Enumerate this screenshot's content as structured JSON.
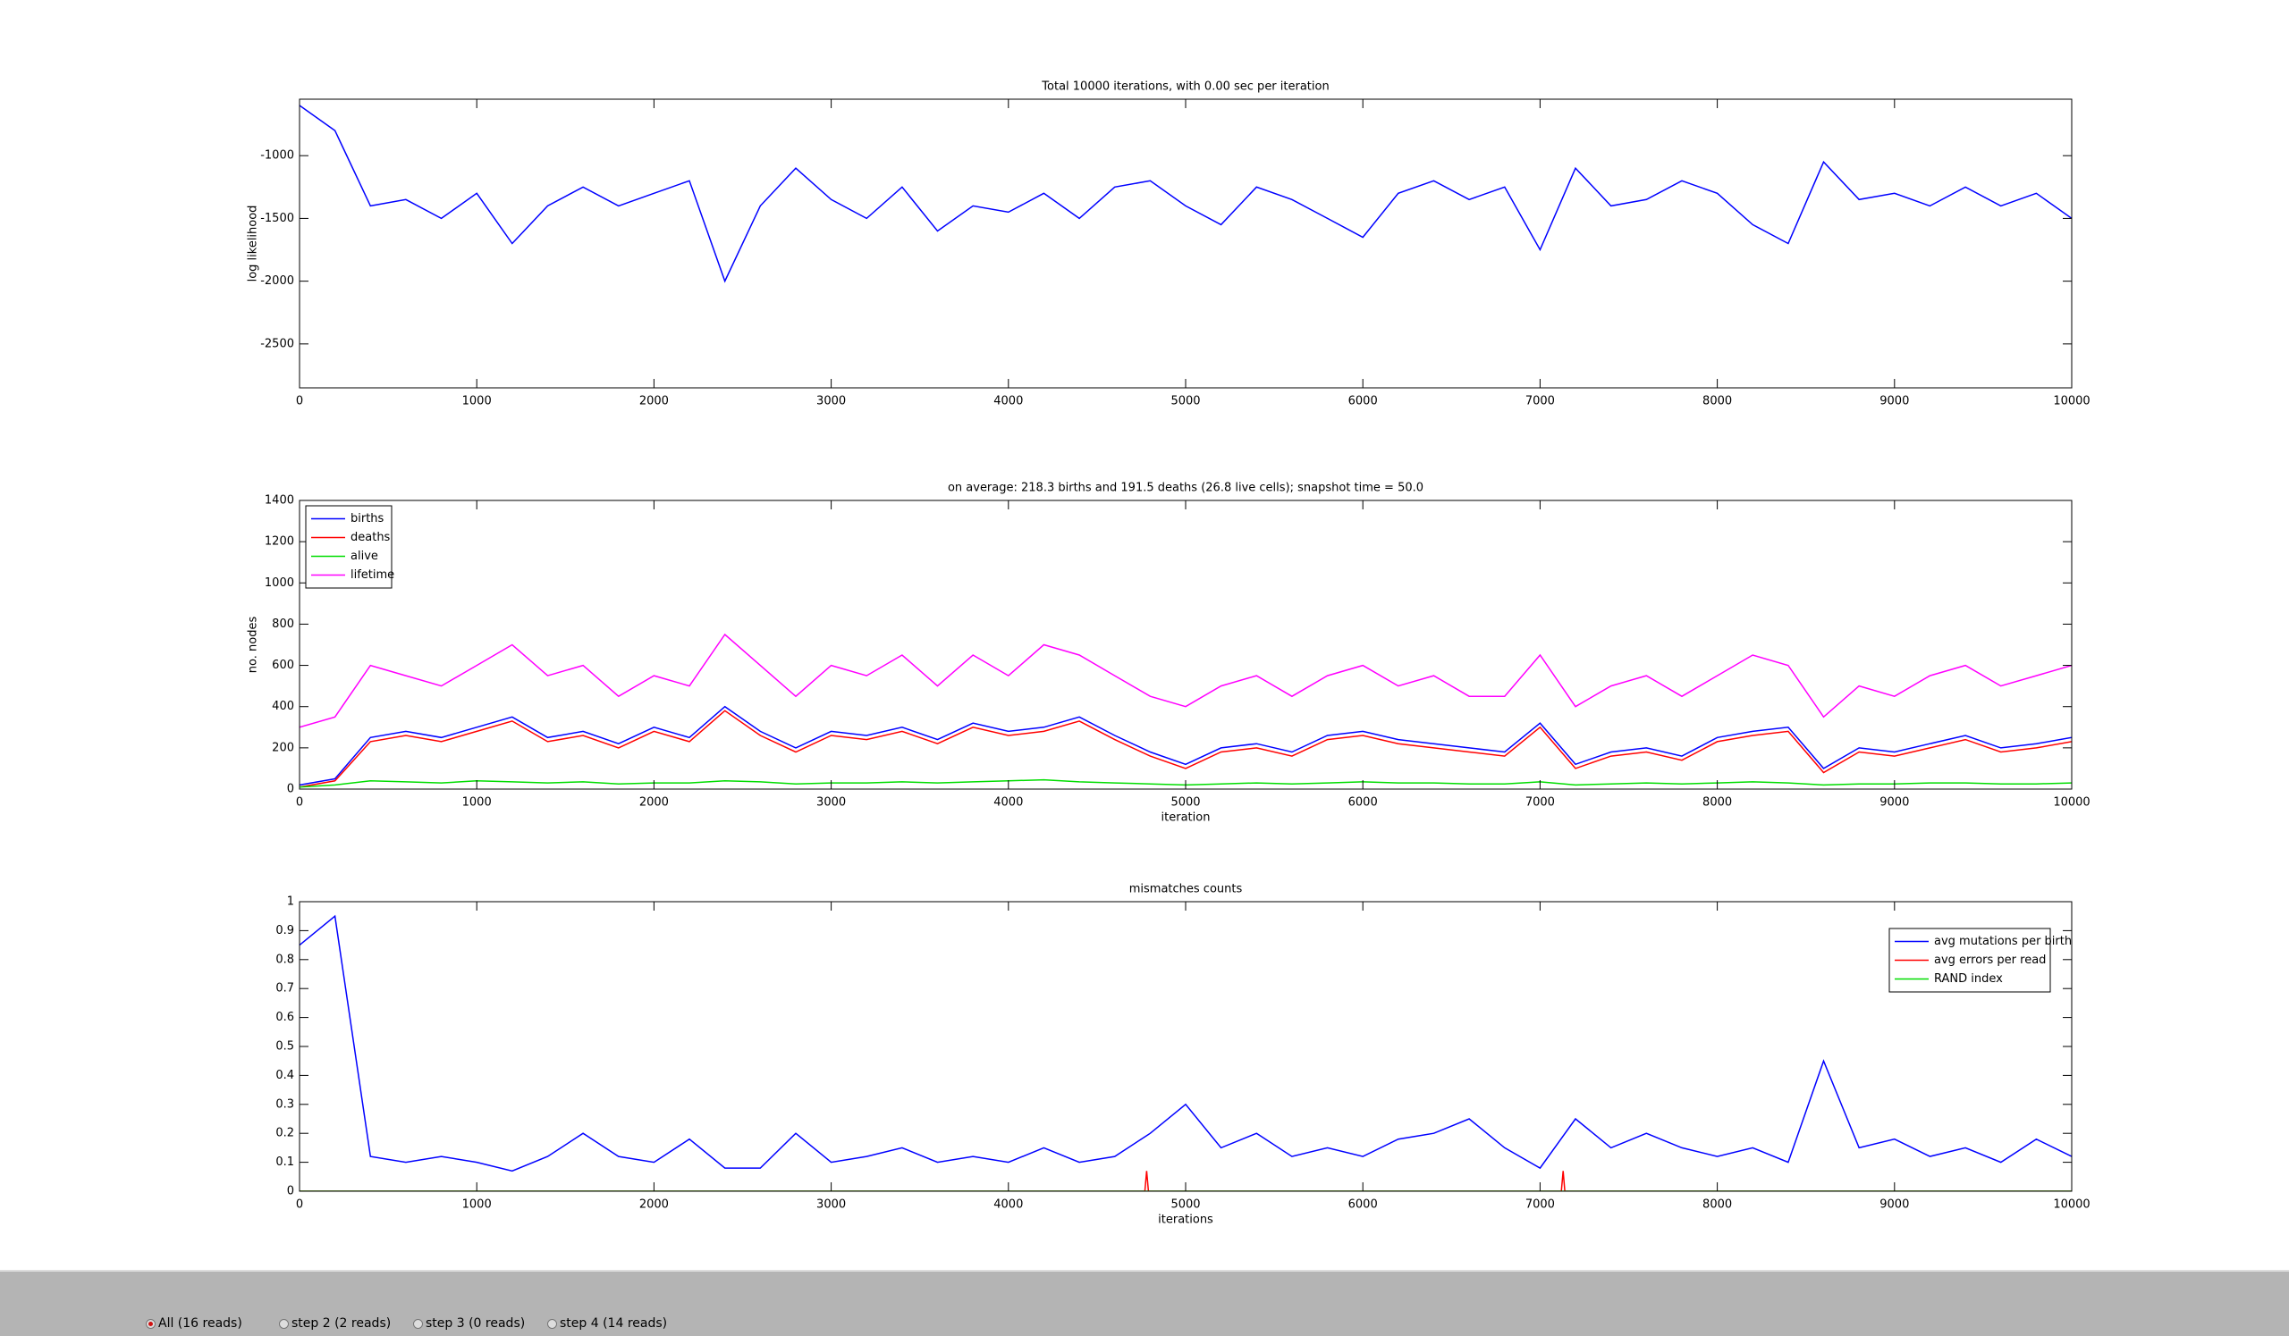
{
  "chart_data": [
    {
      "type": "line",
      "title": "Total 10000 iterations, with 0.00 sec per iteration",
      "ylabel": "log likelihood",
      "x": [
        0,
        200,
        400,
        600,
        800,
        1000,
        1200,
        1400,
        1600,
        1800,
        2000,
        2200,
        2400,
        2600,
        2800,
        3000,
        3200,
        3400,
        3600,
        3800,
        4000,
        4200,
        4400,
        4600,
        4800,
        5000,
        5200,
        5400,
        5600,
        5800,
        6000,
        6200,
        6400,
        6600,
        6800,
        7000,
        7200,
        7400,
        7600,
        7800,
        8000,
        8200,
        8400,
        8600,
        8800,
        9000,
        9200,
        9400,
        9600,
        9800,
        10000
      ],
      "xlim": [
        0,
        10000
      ],
      "xticks": [
        0,
        1000,
        2000,
        3000,
        4000,
        5000,
        6000,
        7000,
        8000,
        9000,
        10000
      ],
      "ylim": [
        -2850,
        -550
      ],
      "yticks": [
        -2500,
        -2000,
        -1500,
        -1000
      ],
      "series": [
        {
          "name": "log likelihood",
          "color": "#0000ff",
          "values": [
            -600,
            -800,
            -1400,
            -1350,
            -1500,
            -1300,
            -1700,
            -1400,
            -1250,
            -1400,
            -1300,
            -1200,
            -2000,
            -1400,
            -1100,
            -1350,
            -1500,
            -1250,
            -1600,
            -1400,
            -1450,
            -1300,
            -1500,
            -1250,
            -1200,
            -1400,
            -1550,
            -1250,
            -1350,
            -1500,
            -1650,
            -1300,
            -1200,
            -1350,
            -1250,
            -1750,
            -1100,
            -1400,
            -1350,
            -1200,
            -1300,
            -1550,
            -1700,
            -1050,
            -1350,
            -1300,
            -1400,
            -1250,
            -1400,
            -1300,
            -1500
          ]
        }
      ]
    },
    {
      "type": "line",
      "title": "on average: 218.3 births and 191.5 deaths (26.8 live cells); snapshot time = 50.0",
      "xlabel": "iteration",
      "ylabel": "no. nodes",
      "legend": "upper left",
      "x": [
        0,
        200,
        400,
        600,
        800,
        1000,
        1200,
        1400,
        1600,
        1800,
        2000,
        2200,
        2400,
        2600,
        2800,
        3000,
        3200,
        3400,
        3600,
        3800,
        4000,
        4200,
        4400,
        4600,
        4800,
        5000,
        5200,
        5400,
        5600,
        5800,
        6000,
        6200,
        6400,
        6600,
        6800,
        7000,
        7200,
        7400,
        7600,
        7800,
        8000,
        8200,
        8400,
        8600,
        8800,
        9000,
        9200,
        9400,
        9600,
        9800,
        10000
      ],
      "xlim": [
        0,
        10000
      ],
      "xticks": [
        0,
        1000,
        2000,
        3000,
        4000,
        5000,
        6000,
        7000,
        8000,
        9000,
        10000
      ],
      "ylim": [
        0,
        1400
      ],
      "yticks": [
        0,
        200,
        400,
        600,
        800,
        1000,
        1200,
        1400
      ],
      "series": [
        {
          "name": "lifetime",
          "color": "#ff00ff",
          "values": [
            300,
            350,
            600,
            550,
            500,
            600,
            700,
            550,
            600,
            450,
            550,
            500,
            750,
            600,
            450,
            600,
            550,
            650,
            500,
            650,
            550,
            700,
            650,
            550,
            450,
            400,
            500,
            550,
            450,
            550,
            600,
            500,
            550,
            450,
            450,
            650,
            400,
            500,
            550,
            450,
            550,
            650,
            600,
            350,
            500,
            450,
            550,
            600,
            500,
            550,
            600
          ]
        },
        {
          "name": "births",
          "color": "#0000ff",
          "values": [
            20,
            50,
            250,
            280,
            250,
            300,
            350,
            250,
            280,
            220,
            300,
            250,
            400,
            280,
            200,
            280,
            260,
            300,
            240,
            320,
            280,
            300,
            350,
            260,
            180,
            120,
            200,
            220,
            180,
            260,
            280,
            240,
            220,
            200,
            180,
            320,
            120,
            180,
            200,
            160,
            250,
            280,
            300,
            100,
            200,
            180,
            220,
            260,
            200,
            220,
            250
          ]
        },
        {
          "name": "deaths",
          "color": "#ff0000",
          "values": [
            10,
            40,
            230,
            260,
            230,
            280,
            330,
            230,
            260,
            200,
            280,
            230,
            380,
            260,
            180,
            260,
            240,
            280,
            220,
            300,
            260,
            280,
            330,
            240,
            160,
            100,
            180,
            200,
            160,
            240,
            260,
            220,
            200,
            180,
            160,
            300,
            100,
            160,
            180,
            140,
            230,
            260,
            280,
            80,
            180,
            160,
            200,
            240,
            180,
            200,
            230
          ]
        },
        {
          "name": "alive",
          "color": "#00dd00",
          "values": [
            10,
            20,
            40,
            35,
            30,
            40,
            35,
            30,
            35,
            25,
            30,
            30,
            40,
            35,
            25,
            30,
            30,
            35,
            30,
            35,
            40,
            45,
            35,
            30,
            25,
            20,
            25,
            30,
            25,
            30,
            35,
            30,
            30,
            25,
            25,
            35,
            20,
            25,
            30,
            25,
            30,
            35,
            30,
            20,
            25,
            25,
            30,
            30,
            25,
            25,
            30
          ]
        }
      ]
    },
    {
      "type": "line",
      "title": "mismatches counts",
      "xlabel": "iterations",
      "legend": "upper right",
      "x": [
        0,
        200,
        400,
        600,
        800,
        1000,
        1200,
        1400,
        1600,
        1800,
        2000,
        2200,
        2400,
        2600,
        2800,
        3000,
        3200,
        3400,
        3600,
        3800,
        4000,
        4200,
        4400,
        4600,
        4800,
        5000,
        5200,
        5400,
        5600,
        5800,
        6000,
        6200,
        6400,
        6600,
        6800,
        7000,
        7200,
        7400,
        7600,
        7800,
        8000,
        8200,
        8400,
        8600,
        8800,
        9000,
        9200,
        9400,
        9600,
        9800,
        10000
      ],
      "xlim": [
        0,
        10000
      ],
      "xticks": [
        0,
        1000,
        2000,
        3000,
        4000,
        5000,
        6000,
        7000,
        8000,
        9000,
        10000
      ],
      "ylim": [
        0,
        1
      ],
      "yticks": [
        0,
        0.1,
        0.2,
        0.3,
        0.4,
        0.5,
        0.6,
        0.7,
        0.8,
        0.9,
        1
      ],
      "series": [
        {
          "name": "avg mutations per birth",
          "color": "#0000ff",
          "values": [
            0.85,
            0.95,
            0.12,
            0.1,
            0.12,
            0.1,
            0.07,
            0.12,
            0.2,
            0.12,
            0.1,
            0.18,
            0.08,
            0.08,
            0.2,
            0.1,
            0.12,
            0.15,
            0.1,
            0.12,
            0.1,
            0.15,
            0.1,
            0.12,
            0.2,
            0.3,
            0.15,
            0.2,
            0.12,
            0.15,
            0.12,
            0.18,
            0.2,
            0.25,
            0.15,
            0.08,
            0.25,
            0.15,
            0.2,
            0.15,
            0.12,
            0.15,
            0.1,
            0.45,
            0.15,
            0.18,
            0.12,
            0.15,
            0.1,
            0.18,
            0.12
          ]
        },
        {
          "name": "avg errors per read",
          "color": "#ff0000",
          "x": [
            0,
            4770,
            4780,
            4790,
            7120,
            7130,
            7140,
            10000
          ],
          "values": [
            0,
            0,
            0.07,
            0,
            0,
            0.07,
            0,
            0
          ]
        },
        {
          "name": "RAND index",
          "color": "#00dd00",
          "x": [
            0,
            10000
          ],
          "values": [
            0,
            0
          ]
        }
      ]
    }
  ],
  "controls": {
    "options": [
      "All (16 reads)",
      "step 2 (2 reads)",
      "step 3 (0 reads)",
      "step 4 (14 reads)"
    ],
    "selected": 0
  }
}
